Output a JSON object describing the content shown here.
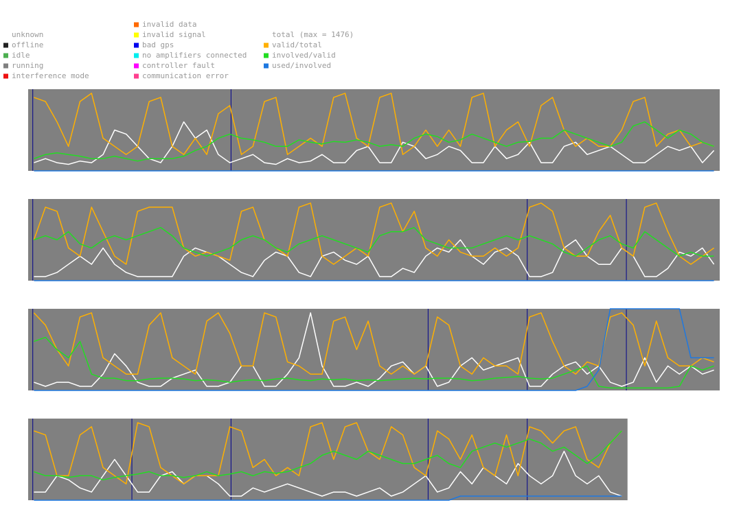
{
  "legend": {
    "states": [
      {
        "name": "unknown",
        "color": "#ffffff"
      },
      {
        "name": "offline",
        "color": "#222222"
      },
      {
        "name": "idle",
        "color": "#4caf50"
      },
      {
        "name": "running",
        "color": "#808080"
      },
      {
        "name": "interference mode",
        "color": "#ee1111"
      }
    ],
    "errors": [
      {
        "name": "invalid data",
        "color": "#ff6a00"
      },
      {
        "name": "invalid signal",
        "color": "#ffff00"
      },
      {
        "name": "bad gps",
        "color": "#0000ee"
      },
      {
        "name": "no amplifiers connected",
        "color": "#00eeee"
      },
      {
        "name": "controller fault",
        "color": "#ff00ff"
      },
      {
        "name": "communication error",
        "color": "#ff3f8f"
      }
    ]
  },
  "chart_data": [
    {
      "type": "line",
      "xlim": [
        0,
        60
      ],
      "ylim": [
        0,
        1
      ],
      "background": "#808080",
      "markers": [
        0.4,
        17.6
      ],
      "marker_color": "#00008b",
      "series": [
        {
          "name": "total (max = 1476)",
          "color": "#ffffff",
          "values": [
            0.1,
            0.15,
            0.1,
            0.08,
            0.12,
            0.1,
            0.2,
            0.5,
            0.45,
            0.3,
            0.15,
            0.1,
            0.3,
            0.6,
            0.4,
            0.5,
            0.2,
            0.1,
            0.15,
            0.2,
            0.1,
            0.08,
            0.15,
            0.1,
            0.12,
            0.2,
            0.1,
            0.1,
            0.25,
            0.3,
            0.1,
            0.1,
            0.35,
            0.3,
            0.15,
            0.2,
            0.3,
            0.25,
            0.1,
            0.1,
            0.3,
            0.15,
            0.2,
            0.35,
            0.1,
            0.1,
            0.3,
            0.35,
            0.2,
            0.25,
            0.3,
            0.2,
            0.1,
            0.1,
            0.2,
            0.3,
            0.25,
            0.3,
            0.1,
            0.25
          ]
        },
        {
          "name": "valid/total",
          "color": "#ffb000",
          "values": [
            0.9,
            0.85,
            0.6,
            0.3,
            0.85,
            0.95,
            0.4,
            0.3,
            0.2,
            0.3,
            0.85,
            0.9,
            0.3,
            0.2,
            0.4,
            0.2,
            0.7,
            0.8,
            0.2,
            0.3,
            0.85,
            0.9,
            0.2,
            0.3,
            0.4,
            0.3,
            0.9,
            0.95,
            0.4,
            0.3,
            0.9,
            0.95,
            0.2,
            0.3,
            0.5,
            0.3,
            0.5,
            0.3,
            0.9,
            0.95,
            0.3,
            0.5,
            0.6,
            0.3,
            0.8,
            0.9,
            0.5,
            0.3,
            0.4,
            0.3,
            0.3,
            0.5,
            0.85,
            0.9,
            0.3,
            0.45,
            0.5,
            0.3,
            0.35,
            0.3
          ]
        },
        {
          "name": "involved/valid",
          "color": "#22dd22",
          "values": [
            0.15,
            0.2,
            0.22,
            0.2,
            0.18,
            0.15,
            0.15,
            0.18,
            0.15,
            0.12,
            0.15,
            0.15,
            0.15,
            0.18,
            0.25,
            0.3,
            0.4,
            0.45,
            0.4,
            0.38,
            0.35,
            0.3,
            0.3,
            0.38,
            0.35,
            0.33,
            0.36,
            0.35,
            0.38,
            0.35,
            0.3,
            0.32,
            0.3,
            0.4,
            0.45,
            0.42,
            0.35,
            0.38,
            0.45,
            0.4,
            0.35,
            0.3,
            0.35,
            0.36,
            0.4,
            0.4,
            0.5,
            0.45,
            0.4,
            0.35,
            0.3,
            0.35,
            0.55,
            0.6,
            0.5,
            0.4,
            0.5,
            0.45,
            0.35,
            0.3
          ]
        },
        {
          "name": "used/involved",
          "color": "#1e78e0",
          "values": [
            0,
            0,
            0,
            0,
            0,
            0,
            0,
            0,
            0,
            0,
            0,
            0,
            0,
            0,
            0,
            0,
            0,
            0,
            0,
            0,
            0,
            0,
            0,
            0,
            0,
            0,
            0,
            0,
            0,
            0,
            0,
            0,
            0,
            0,
            0,
            0,
            0,
            0,
            0,
            0,
            0,
            0,
            0,
            0,
            0,
            0,
            0,
            0,
            0,
            0,
            0,
            0,
            0,
            0,
            0,
            0,
            0,
            0,
            0,
            0
          ]
        }
      ]
    },
    {
      "type": "line",
      "xlim": [
        0,
        60
      ],
      "ylim": [
        0,
        1
      ],
      "background": "#808080",
      "markers": [
        0.4,
        43.3,
        51.9
      ],
      "marker_color": "#00008b",
      "series": [
        {
          "name": "total (max = 1476)",
          "color": "#ffffff",
          "values": [
            0.05,
            0.05,
            0.1,
            0.2,
            0.3,
            0.2,
            0.4,
            0.2,
            0.1,
            0.05,
            0.05,
            0.05,
            0.05,
            0.3,
            0.4,
            0.35,
            0.3,
            0.2,
            0.1,
            0.05,
            0.25,
            0.35,
            0.3,
            0.1,
            0.05,
            0.3,
            0.35,
            0.25,
            0.2,
            0.3,
            0.05,
            0.05,
            0.15,
            0.1,
            0.3,
            0.4,
            0.35,
            0.5,
            0.3,
            0.2,
            0.35,
            0.4,
            0.3,
            0.05,
            0.05,
            0.1,
            0.4,
            0.5,
            0.3,
            0.2,
            0.2,
            0.4,
            0.3,
            0.05,
            0.05,
            0.15,
            0.35,
            0.3,
            0.4,
            0.2
          ]
        },
        {
          "name": "valid/total",
          "color": "#ffb000",
          "values": [
            0.5,
            0.9,
            0.85,
            0.4,
            0.3,
            0.9,
            0.6,
            0.3,
            0.2,
            0.85,
            0.9,
            0.9,
            0.9,
            0.4,
            0.3,
            0.35,
            0.3,
            0.25,
            0.85,
            0.9,
            0.5,
            0.4,
            0.3,
            0.9,
            0.95,
            0.3,
            0.2,
            0.3,
            0.4,
            0.3,
            0.9,
            0.95,
            0.6,
            0.85,
            0.4,
            0.3,
            0.5,
            0.35,
            0.3,
            0.3,
            0.4,
            0.3,
            0.4,
            0.9,
            0.95,
            0.85,
            0.4,
            0.3,
            0.3,
            0.6,
            0.8,
            0.4,
            0.3,
            0.9,
            0.95,
            0.6,
            0.3,
            0.2,
            0.3,
            0.4
          ]
        },
        {
          "name": "involved/valid",
          "color": "#22dd22",
          "values": [
            0.5,
            0.55,
            0.5,
            0.6,
            0.45,
            0.4,
            0.5,
            0.55,
            0.5,
            0.55,
            0.6,
            0.65,
            0.55,
            0.4,
            0.35,
            0.3,
            0.35,
            0.4,
            0.5,
            0.55,
            0.5,
            0.4,
            0.35,
            0.45,
            0.5,
            0.55,
            0.5,
            0.45,
            0.4,
            0.35,
            0.55,
            0.6,
            0.6,
            0.65,
            0.5,
            0.45,
            0.4,
            0.4,
            0.4,
            0.45,
            0.5,
            0.55,
            0.5,
            0.55,
            0.5,
            0.45,
            0.35,
            0.3,
            0.4,
            0.5,
            0.55,
            0.45,
            0.4,
            0.6,
            0.5,
            0.4,
            0.3,
            0.35,
            0.3,
            0.3
          ]
        },
        {
          "name": "used/involved",
          "color": "#1e78e0",
          "values": [
            0,
            0,
            0,
            0,
            0,
            0,
            0,
            0,
            0,
            0,
            0,
            0,
            0,
            0,
            0,
            0,
            0,
            0,
            0,
            0,
            0,
            0,
            0,
            0,
            0,
            0,
            0,
            0,
            0,
            0,
            0,
            0,
            0,
            0,
            0,
            0,
            0,
            0,
            0,
            0,
            0,
            0,
            0,
            0,
            0,
            0,
            0,
            0,
            0,
            0,
            0,
            0,
            0,
            0,
            0,
            0,
            0,
            0,
            0,
            0
          ]
        }
      ]
    },
    {
      "type": "line",
      "xlim": [
        0,
        60
      ],
      "ylim": [
        0,
        1
      ],
      "background": "#808080",
      "markers": [
        0.4,
        34.7,
        43.3,
        51.9
      ],
      "marker_color": "#00008b",
      "series": [
        {
          "name": "total (max = 1476)",
          "color": "#ffffff",
          "values": [
            0.1,
            0.05,
            0.1,
            0.1,
            0.05,
            0.05,
            0.2,
            0.45,
            0.3,
            0.1,
            0.05,
            0.05,
            0.15,
            0.2,
            0.25,
            0.05,
            0.05,
            0.1,
            0.3,
            0.3,
            0.05,
            0.05,
            0.2,
            0.4,
            0.95,
            0.3,
            0.05,
            0.05,
            0.1,
            0.05,
            0.15,
            0.3,
            0.35,
            0.2,
            0.3,
            0.05,
            0.1,
            0.3,
            0.4,
            0.25,
            0.3,
            0.35,
            0.4,
            0.05,
            0.05,
            0.2,
            0.3,
            0.35,
            0.2,
            0.3,
            0.1,
            0.05,
            0.1,
            0.4,
            0.1,
            0.3,
            0.2,
            0.3,
            0.2,
            0.25
          ]
        },
        {
          "name": "valid/total",
          "color": "#ffb000",
          "values": [
            0.95,
            0.8,
            0.5,
            0.3,
            0.9,
            0.95,
            0.4,
            0.3,
            0.2,
            0.2,
            0.8,
            0.95,
            0.4,
            0.3,
            0.2,
            0.85,
            0.95,
            0.7,
            0.3,
            0.3,
            0.95,
            0.9,
            0.35,
            0.3,
            0.2,
            0.2,
            0.85,
            0.9,
            0.5,
            0.85,
            0.3,
            0.2,
            0.3,
            0.2,
            0.3,
            0.9,
            0.8,
            0.3,
            0.2,
            0.4,
            0.3,
            0.3,
            0.2,
            0.9,
            0.95,
            0.6,
            0.3,
            0.2,
            0.35,
            0.3,
            0.9,
            0.95,
            0.8,
            0.3,
            0.85,
            0.4,
            0.3,
            0.3,
            0.4,
            0.35
          ]
        },
        {
          "name": "involved/valid",
          "color": "#22dd22",
          "values": [
            0.6,
            0.65,
            0.5,
            0.4,
            0.6,
            0.2,
            0.15,
            0.15,
            0.12,
            0.12,
            0.14,
            0.15,
            0.15,
            0.14,
            0.12,
            0.13,
            0.12,
            0.1,
            0.12,
            0.13,
            0.12,
            0.14,
            0.15,
            0.13,
            0.12,
            0.14,
            0.13,
            0.14,
            0.12,
            0.13,
            0.12,
            0.13,
            0.14,
            0.15,
            0.14,
            0.15,
            0.15,
            0.14,
            0.12,
            0.13,
            0.15,
            0.16,
            0.17,
            0.15,
            0.14,
            0.15,
            0.2,
            0.25,
            0.3,
            0.05,
            0.03,
            0.03,
            0.03,
            0.03,
            0.03,
            0.03,
            0.05,
            0.3,
            0.25,
            0.3
          ]
        },
        {
          "name": "used/involved",
          "color": "#1e78e0",
          "values": [
            0,
            0,
            0,
            0,
            0,
            0,
            0,
            0,
            0,
            0,
            0,
            0,
            0,
            0,
            0,
            0,
            0,
            0,
            0,
            0,
            0,
            0,
            0,
            0,
            0,
            0,
            0,
            0,
            0,
            0,
            0,
            0,
            0,
            0,
            0,
            0,
            0,
            0,
            0,
            0,
            0,
            0,
            0,
            0,
            0,
            0,
            0,
            0,
            0.05,
            0.25,
            1,
            1,
            1,
            1,
            1,
            1,
            1,
            0.4,
            0.4,
            0.4
          ]
        }
      ]
    },
    {
      "type": "line",
      "xlim": [
        0,
        60
      ],
      "ylim": [
        0,
        1
      ],
      "background": "#808080",
      "markers": [
        0.4,
        9,
        17.6,
        34.7,
        43.3
      ],
      "marker_color": "#00008b",
      "series": [
        {
          "name": "total (max = 1476)",
          "color": "#ffffff",
          "values": [
            0.1,
            0.1,
            0.3,
            0.25,
            0.15,
            0.1,
            0.3,
            0.5,
            0.3,
            0.1,
            0.1,
            0.3,
            0.35,
            0.2,
            0.3,
            0.3,
            0.2,
            0.05,
            0.05,
            0.15,
            0.1,
            0.15,
            0.2,
            0.15,
            0.1,
            0.05,
            0.1,
            0.1,
            0.05,
            0.1,
            0.15,
            0.05,
            0.1,
            0.2,
            0.3,
            0.1,
            0.15,
            0.35,
            0.2,
            0.4,
            0.3,
            0.2,
            0.45,
            0.3,
            0.2,
            0.3,
            0.6,
            0.3,
            0.2,
            0.3,
            0.1,
            0.05
          ]
        },
        {
          "name": "valid/total",
          "color": "#ffb000",
          "values": [
            0.85,
            0.8,
            0.3,
            0.3,
            0.8,
            0.9,
            0.4,
            0.3,
            0.2,
            0.95,
            0.9,
            0.4,
            0.3,
            0.2,
            0.3,
            0.3,
            0.3,
            0.9,
            0.85,
            0.4,
            0.5,
            0.3,
            0.4,
            0.3,
            0.9,
            0.95,
            0.5,
            0.9,
            0.95,
            0.6,
            0.5,
            0.9,
            0.8,
            0.4,
            0.3,
            0.85,
            0.75,
            0.5,
            0.8,
            0.4,
            0.3,
            0.8,
            0.3,
            0.9,
            0.85,
            0.7,
            0.85,
            0.9,
            0.5,
            0.4,
            0.7,
            0.85
          ]
        },
        {
          "name": "involved/valid",
          "color": "#22dd22",
          "values": [
            0.35,
            0.3,
            0.3,
            0.28,
            0.3,
            0.3,
            0.25,
            0.28,
            0.3,
            0.32,
            0.35,
            0.3,
            0.3,
            0.28,
            0.3,
            0.35,
            0.3,
            0.32,
            0.35,
            0.3,
            0.35,
            0.33,
            0.35,
            0.4,
            0.45,
            0.55,
            0.6,
            0.55,
            0.5,
            0.6,
            0.55,
            0.5,
            0.45,
            0.45,
            0.5,
            0.55,
            0.45,
            0.4,
            0.6,
            0.65,
            0.7,
            0.65,
            0.7,
            0.75,
            0.7,
            0.6,
            0.65,
            0.55,
            0.45,
            0.55,
            0.7,
            0.85
          ]
        },
        {
          "name": "used/involved",
          "color": "#1e78e0",
          "values": [
            0,
            0,
            0,
            0,
            0,
            0,
            0,
            0,
            0,
            0,
            0,
            0,
            0,
            0,
            0,
            0,
            0,
            0,
            0,
            0,
            0,
            0,
            0,
            0,
            0,
            0,
            0,
            0,
            0,
            0,
            0,
            0,
            0,
            0,
            0,
            0,
            0,
            0.05,
            0.05,
            0.05,
            0.05,
            0.05,
            0.05,
            0.05,
            0.05,
            0.05,
            0.05,
            0.05,
            0.05,
            0.05,
            0.05,
            0.05
          ]
        }
      ]
    }
  ]
}
